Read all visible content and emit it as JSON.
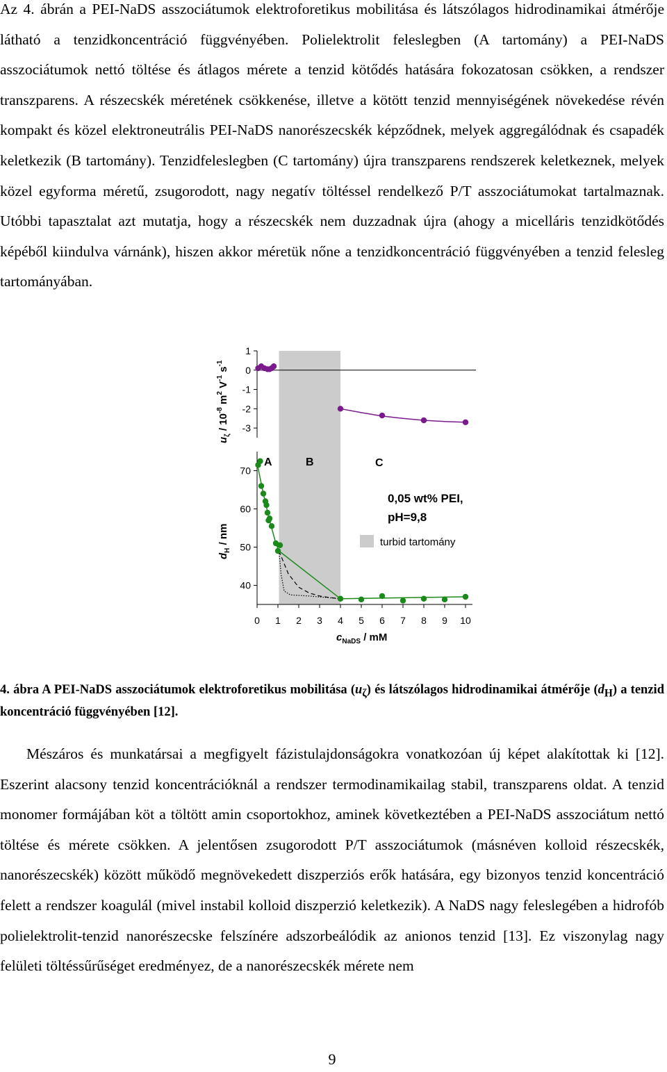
{
  "paragraph1": "Az 4. ábrán a PEI-NaDS asszociátumok elektroforetikus mobilitása és látszólagos hidrodinamikai átmérője látható a tenzidkoncentráció függvényében. Polielektrolit feleslegben (A tartomány) a PEI-NaDS asszociátumok nettó töltése és átlagos mérete a tenzid kötődés hatására fokozatosan csökken, a rendszer transzparens. A részecskék méretének csökkenése, illetve a kötött tenzid mennyiségének növekedése révén kompakt és közel elektroneutrális PEI-NaDS nanorészecskék képződnek, melyek aggregálódnak és csapadék keletkezik (B tartomány). Tenzidfeleslegben (C tartomány) újra transzparens rendszerek keletkeznek, melyek közel egyforma méretű, zsugorodott, nagy negatív töltéssel rendelkező P/T asszociátumokat tartalmaznak. Utóbbi tapasztalat azt mutatja, hogy a részecskék nem duzzadnak újra (ahogy a micelláris tenzidkötődés képéből kiindulva várnánk), hiszen akkor méretük nőne a tenzidkoncentráció függvényében a tenzid felesleg tartományában.",
  "caption": {
    "lead": "4. ábra A PEI-NaDS asszociátumok elektroforetikus mobilitása (",
    "u_symbol": "u",
    "u_sub": "ζ",
    "mid": ") és látszólagos hidrodinamikai átmérője (",
    "d_symbol": "d",
    "d_sub": "H",
    "tail": ") a tenzid koncentráció függvényében [12]."
  },
  "paragraph2": "Mészáros és munkatársai a megfigyelt fázistulajdonságokra vonatkozóan új képet alakítottak ki [12]. Eszerint alacsony tenzid koncentrációknál a rendszer termodinamikailag stabil, transzparens oldat. A tenzid monomer formájában köt a töltött amin csoportokhoz, aminek következtében a PEI-NaDS asszociátum nettó töltése és mérete csökken. A jelentősen zsugorodott P/T asszociátumok (másnéven kolloid részecskék, nanorészecskék) között működő megnövekedett diszperziós erők hatására, egy bizonyos tenzid koncentráció felett a rendszer koagulál (mivel instabil kolloid diszperzió keletkezik). A NaDS nagy feleslegében a hidrofób polielektrolit-tenzid nanorészecske felszínére adszorbeálódik az anionos tenzid [13]. Ez viszonylag nagy felületi töltéssűrűséget eredményez, de a nanorészecskék mérete nem",
  "page_number": "9",
  "chart_data": {
    "type": "scatter",
    "x_label": {
      "symbol": "c",
      "sub": "NaDS",
      "unit": " / mM"
    },
    "x_ticks": [
      "0",
      "1",
      "2",
      "3",
      "4",
      "5",
      "6",
      "7",
      "8",
      "9",
      "10"
    ],
    "xlim": [
      0,
      10
    ],
    "shaded_region": {
      "x": [
        1.05,
        4.0
      ],
      "legend": "turbid tartomány",
      "color": "#cccccc"
    },
    "region_labels": [
      "A",
      "B",
      "C"
    ],
    "annotation": [
      "0,05 wt% PEI,",
      "pH=9,8"
    ],
    "panels": [
      {
        "name": "mobility",
        "ylabel": {
          "symbol": "u",
          "sub": "ζ",
          "text": " / 10",
          "exp1": "-8",
          "t2": " m",
          "exp2": "2",
          "t3": " V",
          "exp3": "-1",
          "t4": " s",
          "exp4": "-1"
        },
        "y_ticks": [
          "1",
          "0",
          "-1",
          "-2",
          "-3"
        ],
        "ylim": [
          -3.5,
          1
        ],
        "color": "#7b1a8c",
        "points": [
          [
            0.05,
            0.1
          ],
          [
            0.2,
            0.2
          ],
          [
            0.35,
            0.1
          ],
          [
            0.5,
            0.05
          ],
          [
            0.6,
            0.05
          ],
          [
            0.7,
            0.1
          ],
          [
            0.8,
            0.2
          ],
          [
            4.0,
            -2.0
          ],
          [
            6.0,
            -2.35
          ],
          [
            8.0,
            -2.6
          ],
          [
            10.0,
            -2.7
          ]
        ],
        "fit_x": [
          4.0,
          5.0,
          6.0,
          7.0,
          8.0,
          9.0,
          10.0
        ],
        "fit_y": [
          -2.0,
          -2.2,
          -2.38,
          -2.5,
          -2.6,
          -2.66,
          -2.7
        ],
        "reference_line": 0
      },
      {
        "name": "diameter",
        "ylabel": {
          "symbol": "d",
          "sub": "H",
          "text": " / nm"
        },
        "y_ticks": [
          "70",
          "60",
          "50",
          "40"
        ],
        "ylim": [
          35,
          75
        ],
        "color": "#1b8a1b",
        "points": [
          [
            0.05,
            71.5
          ],
          [
            0.15,
            72.5
          ],
          [
            0.2,
            66
          ],
          [
            0.3,
            64
          ],
          [
            0.4,
            62
          ],
          [
            0.45,
            61
          ],
          [
            0.5,
            59
          ],
          [
            0.55,
            57
          ],
          [
            0.6,
            57.5
          ],
          [
            0.7,
            55.5
          ],
          [
            0.9,
            51
          ],
          [
            1.0,
            49
          ],
          [
            1.1,
            50.5
          ],
          [
            4.0,
            36.5
          ],
          [
            5.0,
            36.3
          ],
          [
            6.0,
            37.2
          ],
          [
            7.0,
            36
          ],
          [
            8.0,
            36.5
          ],
          [
            9.0,
            36.3
          ],
          [
            10.0,
            37
          ]
        ],
        "fit_x": [
          0.0,
          0.3,
          0.6,
          0.9,
          1.05,
          4.0,
          10.0
        ],
        "fit_y": [
          72,
          64,
          57,
          51,
          49,
          36.5,
          37
        ],
        "dashed_x": [
          1.05,
          1.5,
          2.0,
          2.5,
          3.0,
          3.5,
          4.0
        ],
        "dashed_y": [
          49,
          43,
          39.5,
          38,
          37.2,
          36.8,
          36.5
        ],
        "dotted_x": [
          1.05,
          1.15,
          1.3,
          1.6,
          2.5,
          4.0
        ],
        "dotted_y": [
          49,
          43,
          38.5,
          37.5,
          37.2,
          36.5
        ]
      }
    ]
  }
}
